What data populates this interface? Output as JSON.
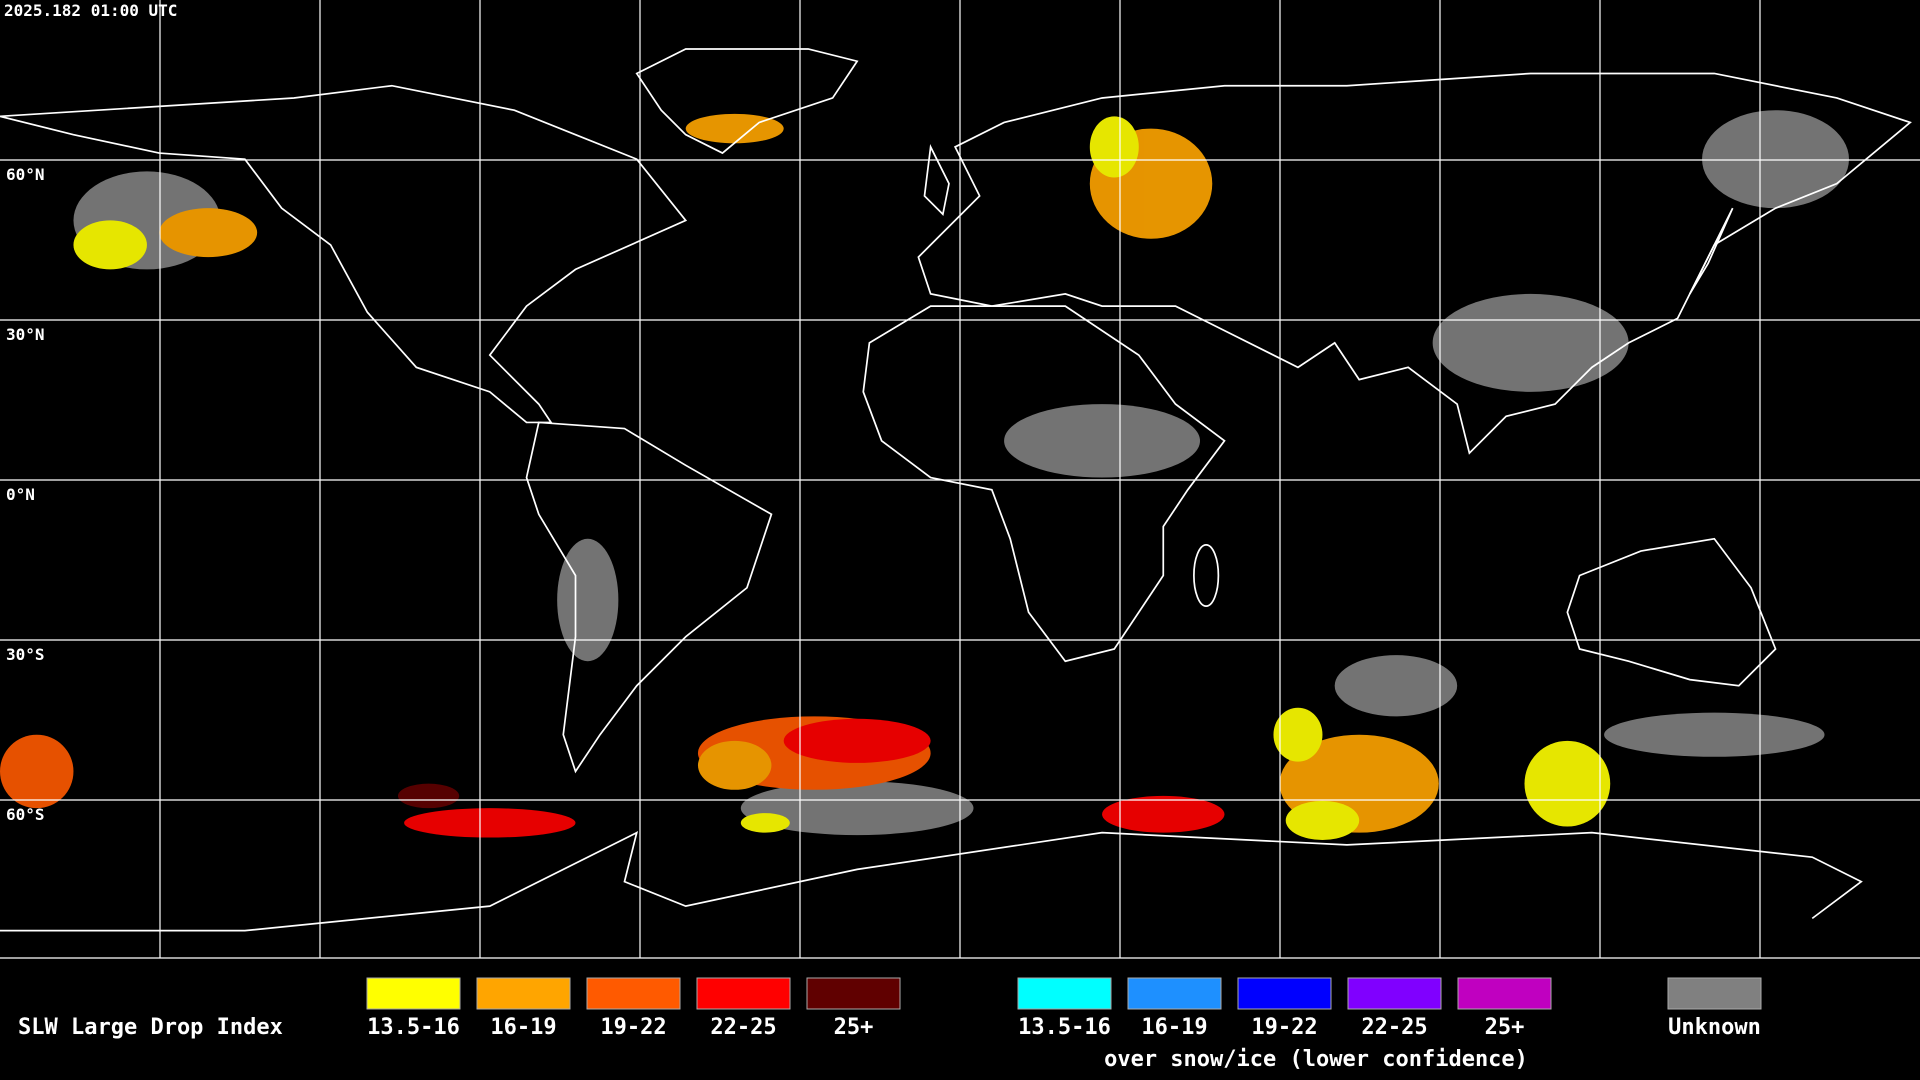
{
  "header": {
    "timestamp": "2025.182 01:00 UTC"
  },
  "map": {
    "latitude_labels": [
      "60°N",
      "30°N",
      "0°N",
      "30°S",
      "60°S"
    ]
  },
  "legend": {
    "title": "SLW Large Drop Index",
    "groups": [
      {
        "items": [
          {
            "label": "13.5-16",
            "color": "#ffff00"
          },
          {
            "label": "16-19",
            "color": "#ffa500"
          },
          {
            "label": "19-22",
            "color": "#ff5a00"
          },
          {
            "label": "22-25",
            "color": "#ff0000"
          },
          {
            "label": "25+",
            "color": "#600000"
          }
        ]
      },
      {
        "items": [
          {
            "label": "13.5-16",
            "color": "#00ffff"
          },
          {
            "label": "16-19",
            "color": "#1e90ff"
          },
          {
            "label": "19-22",
            "color": "#0000ff"
          },
          {
            "label": "22-25",
            "color": "#8000ff"
          },
          {
            "label": "25+",
            "color": "#c000c0"
          }
        ],
        "note": "over snow/ice (lower confidence)"
      }
    ],
    "unknown": {
      "label": "Unknown",
      "color": "#808080"
    }
  }
}
